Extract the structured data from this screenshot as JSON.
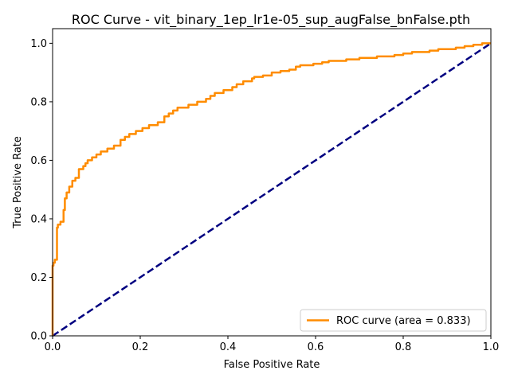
{
  "chart_data": {
    "type": "line",
    "title": "ROC Curve - vit_binary_1ep_lr1e-05_sup_augFalse_bnFalse.pth",
    "xlabel": "False Positive Rate",
    "ylabel": "True Positive Rate",
    "xlim": [
      0.0,
      1.0
    ],
    "ylim": [
      0.0,
      1.05
    ],
    "xticks": [
      "0.0",
      "0.2",
      "0.4",
      "0.6",
      "0.8",
      "1.0"
    ],
    "yticks": [
      "0.0",
      "0.2",
      "0.4",
      "0.6",
      "0.8",
      "1.0"
    ],
    "grid": false,
    "legend_position": "lower-right",
    "series": [
      {
        "name": "ROC curve (area = 0.833)",
        "color": "#ff8c00",
        "style": "solid",
        "x": [
          0.0,
          0.0,
          0.002,
          0.002,
          0.005,
          0.005,
          0.01,
          0.01,
          0.012,
          0.012,
          0.018,
          0.018,
          0.025,
          0.025,
          0.028,
          0.028,
          0.032,
          0.032,
          0.038,
          0.038,
          0.045,
          0.045,
          0.052,
          0.052,
          0.06,
          0.06,
          0.07,
          0.07,
          0.075,
          0.075,
          0.08,
          0.08,
          0.09,
          0.09,
          0.1,
          0.1,
          0.11,
          0.11,
          0.125,
          0.125,
          0.14,
          0.14,
          0.155,
          0.155,
          0.165,
          0.165,
          0.175,
          0.175,
          0.19,
          0.19,
          0.205,
          0.205,
          0.22,
          0.22,
          0.24,
          0.24,
          0.255,
          0.255,
          0.265,
          0.265,
          0.275,
          0.275,
          0.285,
          0.285,
          0.31,
          0.31,
          0.33,
          0.33,
          0.35,
          0.35,
          0.36,
          0.36,
          0.37,
          0.37,
          0.39,
          0.39,
          0.41,
          0.41,
          0.42,
          0.42,
          0.435,
          0.435,
          0.455,
          0.455,
          0.46,
          0.46,
          0.48,
          0.48,
          0.5,
          0.5,
          0.52,
          0.52,
          0.54,
          0.54,
          0.555,
          0.555,
          0.565,
          0.565,
          0.595,
          0.595,
          0.615,
          0.615,
          0.63,
          0.63,
          0.67,
          0.67,
          0.7,
          0.7,
          0.74,
          0.74,
          0.78,
          0.78,
          0.8,
          0.8,
          0.82,
          0.82,
          0.86,
          0.86,
          0.88,
          0.88,
          0.92,
          0.92,
          0.94,
          0.94,
          0.96,
          0.96,
          0.98,
          0.98,
          1.0
        ],
        "y": [
          0.0,
          0.24,
          0.24,
          0.25,
          0.25,
          0.26,
          0.26,
          0.37,
          0.37,
          0.38,
          0.38,
          0.39,
          0.39,
          0.43,
          0.43,
          0.47,
          0.47,
          0.49,
          0.49,
          0.51,
          0.51,
          0.53,
          0.53,
          0.54,
          0.54,
          0.57,
          0.57,
          0.58,
          0.58,
          0.59,
          0.59,
          0.6,
          0.6,
          0.61,
          0.61,
          0.62,
          0.62,
          0.63,
          0.63,
          0.64,
          0.64,
          0.65,
          0.65,
          0.67,
          0.67,
          0.68,
          0.68,
          0.69,
          0.69,
          0.7,
          0.7,
          0.71,
          0.71,
          0.72,
          0.72,
          0.73,
          0.73,
          0.75,
          0.75,
          0.76,
          0.76,
          0.77,
          0.77,
          0.78,
          0.78,
          0.79,
          0.79,
          0.8,
          0.8,
          0.81,
          0.81,
          0.82,
          0.82,
          0.83,
          0.83,
          0.84,
          0.84,
          0.85,
          0.85,
          0.86,
          0.86,
          0.87,
          0.87,
          0.88,
          0.88,
          0.885,
          0.885,
          0.89,
          0.89,
          0.9,
          0.9,
          0.905,
          0.905,
          0.91,
          0.91,
          0.92,
          0.92,
          0.925,
          0.925,
          0.93,
          0.93,
          0.935,
          0.935,
          0.94,
          0.94,
          0.945,
          0.945,
          0.95,
          0.95,
          0.955,
          0.955,
          0.96,
          0.96,
          0.965,
          0.965,
          0.97,
          0.97,
          0.975,
          0.975,
          0.98,
          0.98,
          0.985,
          0.985,
          0.99,
          0.99,
          0.995,
          0.995,
          1.0,
          1.0
        ]
      },
      {
        "color": "#000080",
        "style": "dashed",
        "x": [
          0.0,
          1.0
        ],
        "y": [
          0.0,
          1.0
        ]
      }
    ]
  }
}
